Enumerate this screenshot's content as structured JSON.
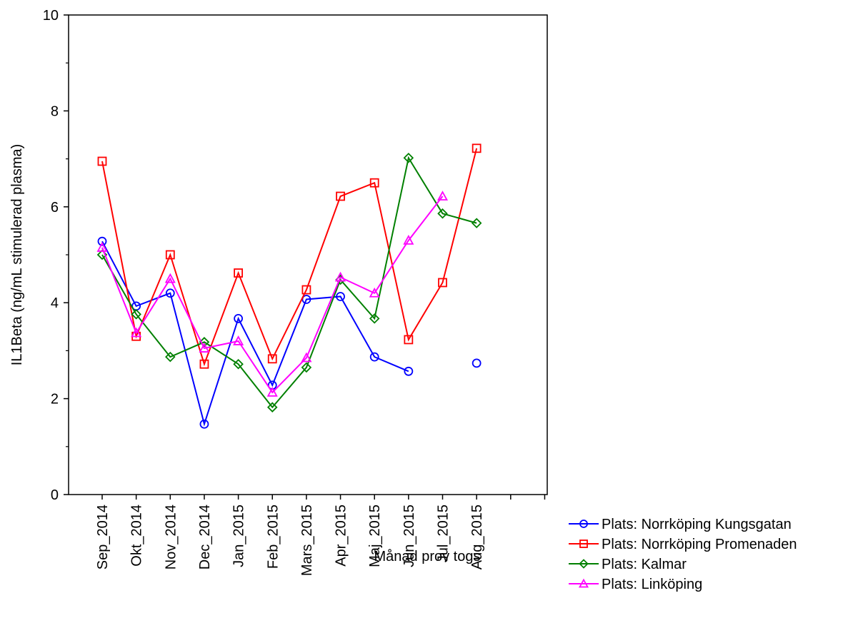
{
  "chart_data": {
    "type": "line",
    "title": "",
    "xlabel": "Månad prov togs",
    "ylabel": "IL1Beta (ng/mL stimulerad plasma)",
    "ylim": [
      0,
      10
    ],
    "yticks": [
      0,
      2,
      4,
      6,
      8,
      10
    ],
    "grid": false,
    "legend_position": "bottom-right",
    "categories": [
      "Sep_2014",
      "Okt_2014",
      "Nov_2014",
      "Dec_2014",
      "Jan_2015",
      "Feb_2015",
      "Mars_2015",
      "Apr_2015",
      "Maj_2015",
      "Jun_2015",
      "Jul_2015",
      "Aug_2015"
    ],
    "series": [
      {
        "name": "Plats: Norrköping Kungsgatan",
        "color": "#0000ff",
        "marker": "circle",
        "values": [
          5.28,
          3.93,
          4.2,
          1.47,
          3.67,
          2.28,
          4.07,
          4.13,
          2.87,
          2.57,
          null,
          2.74
        ]
      },
      {
        "name": "Plats: Norrköping Promenaden",
        "color": "#ff0000",
        "marker": "square",
        "values": [
          6.95,
          3.3,
          5.0,
          2.72,
          4.62,
          2.83,
          4.27,
          6.22,
          6.5,
          3.23,
          4.42,
          7.22
        ]
      },
      {
        "name": "Plats: Kalmar",
        "color": "#008000",
        "marker": "diamond",
        "values": [
          5.0,
          3.76,
          2.87,
          3.18,
          2.72,
          1.82,
          2.65,
          4.48,
          3.67,
          7.02,
          5.86,
          5.66
        ]
      },
      {
        "name": "Plats: Linköping",
        "color": "#ff00ff",
        "marker": "triangle",
        "values": [
          5.15,
          3.37,
          4.5,
          3.05,
          3.2,
          2.13,
          2.85,
          4.53,
          4.2,
          5.3,
          6.22,
          null
        ]
      }
    ]
  }
}
